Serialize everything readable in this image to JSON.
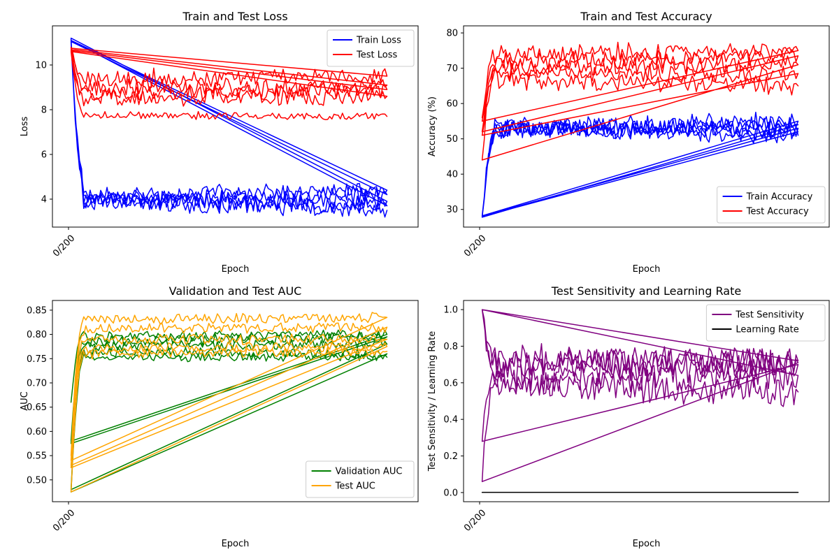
{
  "chart_data": [
    {
      "type": "line",
      "title": "Train and Test Loss",
      "xlabel": "Epoch",
      "ylabel": "Loss",
      "xtick_labels": [
        "0/200"
      ],
      "yticks": [
        4,
        6,
        8,
        10
      ],
      "ylim": [
        2.75,
        11.75
      ],
      "legend_loc": "upper right",
      "grid": false,
      "series": [
        {
          "name": "Train Loss",
          "color": "#0000ff",
          "runs": [
            {
              "start": 11.15,
              "fall": 4.8,
              "level": 4.1,
              "noise": 0.45,
              "end": 4.4
            },
            {
              "start": 11.1,
              "fall": 4.9,
              "level": 4.05,
              "noise": 0.45,
              "end": 4.2
            },
            {
              "start": 11.05,
              "fall": 4.9,
              "level": 3.95,
              "noise": 0.45,
              "end": 3.9
            },
            {
              "start": 11.2,
              "fall": 5.0,
              "level": 4.0,
              "noise": 0.45,
              "end": 3.7
            },
            {
              "start": 11.1,
              "fall": 4.85,
              "level": 3.9,
              "noise": 0.45,
              "end": 3.5
            }
          ]
        },
        {
          "name": "Test Loss",
          "color": "#ff0000",
          "runs": [
            {
              "start": 10.8,
              "fall": 9.5,
              "level": 9.4,
              "noise": 0.45,
              "end": 9.5
            },
            {
              "start": 10.75,
              "fall": 9.0,
              "level": 8.9,
              "noise": 0.45,
              "end": 9.1
            },
            {
              "start": 10.7,
              "fall": 8.7,
              "level": 8.7,
              "noise": 0.45,
              "end": 8.9
            },
            {
              "start": 10.65,
              "fall": 8.7,
              "level": 8.55,
              "noise": 0.45,
              "end": 8.6
            },
            {
              "start": 10.6,
              "fall": 7.9,
              "level": 7.75,
              "noise": 0.2,
              "end": 7.7
            }
          ]
        }
      ]
    },
    {
      "type": "line",
      "title": "Train and Test Accuracy",
      "xlabel": "Epoch",
      "ylabel": "Accuracy (%)",
      "xtick_labels": [
        "0/200"
      ],
      "yticks": [
        30,
        40,
        50,
        60,
        70,
        80
      ],
      "ylim": [
        25,
        82
      ],
      "legend_loc": "lower right",
      "grid": false,
      "series": [
        {
          "name": "Train Accuracy",
          "color": "#0000ff",
          "runs": [
            {
              "start": 28,
              "fall": 50,
              "level": 53,
              "noise": 3,
              "end": 55
            },
            {
              "start": 28.2,
              "fall": 51,
              "level": 53,
              "noise": 3,
              "end": 54
            },
            {
              "start": 27.8,
              "fall": 50,
              "level": 53,
              "noise": 3,
              "end": 53
            },
            {
              "start": 28.1,
              "fall": 50,
              "level": 53,
              "noise": 3,
              "end": 52
            },
            {
              "start": 28,
              "fall": 51,
              "level": 53,
              "noise": 3,
              "end": 51
            }
          ]
        },
        {
          "name": "Test Accuracy",
          "color": "#ff0000",
          "runs": [
            {
              "start": 56,
              "fall": 74,
              "level": 74,
              "noise": 3,
              "end": 75
            },
            {
              "start": 55,
              "fall": 71,
              "level": 71.5,
              "noise": 3,
              "end": 73.5
            },
            {
              "start": 52,
              "fall": 71,
              "level": 70.5,
              "noise": 3,
              "end": 71
            },
            {
              "start": 44,
              "fall": 68,
              "level": 68.5,
              "noise": 3,
              "end": 68.5
            },
            {
              "start": 51,
              "fall": 67,
              "level": 67,
              "noise": 3,
              "end": 65
            }
          ]
        }
      ]
    },
    {
      "type": "line",
      "title": "Validation and Test AUC",
      "xlabel": "Epoch",
      "ylabel": "AUC",
      "xtick_labels": [
        "0/200"
      ],
      "yticks": [
        0.5,
        0.55,
        0.6,
        0.65,
        0.7,
        0.75,
        0.8,
        0.85
      ],
      "ylim": [
        0.455,
        0.87
      ],
      "legend_loc": "lower right",
      "grid": false,
      "series": [
        {
          "name": "Validation AUC",
          "color": "#008000",
          "runs": [
            {
              "start": 0.66,
              "fall": 0.8,
              "level": 0.795,
              "noise": 0.012,
              "end": 0.8
            },
            {
              "start": 0.58,
              "fall": 0.79,
              "level": 0.785,
              "noise": 0.012,
              "end": 0.795
            },
            {
              "start": 0.575,
              "fall": 0.78,
              "level": 0.775,
              "noise": 0.012,
              "end": 0.78
            },
            {
              "start": 0.48,
              "fall": 0.76,
              "level": 0.765,
              "noise": 0.012,
              "end": 0.76
            },
            {
              "start": 0.475,
              "fall": 0.75,
              "level": 0.752,
              "noise": 0.01,
              "end": 0.753
            }
          ]
        },
        {
          "name": "Test AUC",
          "color": "#ffa500",
          "runs": [
            {
              "start": 0.55,
              "fall": 0.83,
              "level": 0.83,
              "noise": 0.012,
              "end": 0.835
            },
            {
              "start": 0.54,
              "fall": 0.81,
              "level": 0.81,
              "noise": 0.012,
              "end": 0.815
            },
            {
              "start": 0.53,
              "fall": 0.79,
              "level": 0.79,
              "noise": 0.012,
              "end": 0.79
            },
            {
              "start": 0.525,
              "fall": 0.77,
              "level": 0.77,
              "noise": 0.012,
              "end": 0.775
            },
            {
              "start": 0.475,
              "fall": 0.76,
              "level": 0.76,
              "noise": 0.012,
              "end": 0.765
            }
          ]
        }
      ]
    },
    {
      "type": "line",
      "title": "Test Sensitivity and Learning Rate",
      "xlabel": "Epoch",
      "ylabel": "Test Sensitivity / Learning Rate",
      "xtick_labels": [
        "0/200"
      ],
      "yticks": [
        0.0,
        0.2,
        0.4,
        0.6,
        0.8,
        1.0
      ],
      "ylim": [
        -0.05,
        1.05
      ],
      "legend_loc": "upper right",
      "grid": false,
      "series": [
        {
          "name": "Test Sensitivity",
          "color": "#800080",
          "runs": [
            {
              "start": 1.0,
              "fall": 0.72,
              "level": 0.73,
              "noise": 0.1,
              "end": 0.72
            },
            {
              "start": 1.0,
              "fall": 0.7,
              "level": 0.71,
              "noise": 0.1,
              "end": 0.7
            },
            {
              "start": 0.28,
              "fall": 0.66,
              "level": 0.65,
              "noise": 0.1,
              "end": 0.71
            },
            {
              "start": 0.06,
              "fall": 0.62,
              "level": 0.62,
              "noise": 0.1,
              "end": 0.64
            },
            {
              "start": 1.0,
              "fall": 0.6,
              "level": 0.6,
              "noise": 0.1,
              "end": 0.55
            }
          ]
        },
        {
          "name": "Learning Rate",
          "color": "#000000",
          "runs": [
            {
              "start": 0.001,
              "fall": 0.001,
              "level": 0.001,
              "noise": 0,
              "end": 0.001
            }
          ]
        }
      ]
    }
  ]
}
